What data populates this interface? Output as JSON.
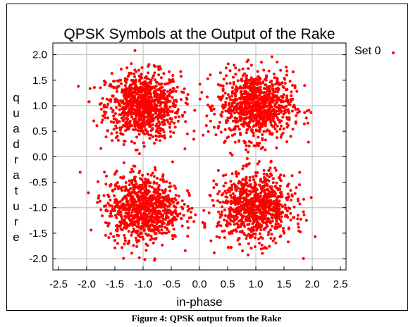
{
  "chart_data": {
    "type": "scatter",
    "title": "QPSK Symbols at the Output of the Rake",
    "xlabel": "in-phase",
    "ylabel": "quadrature",
    "xlim": [
      -2.5,
      2.5
    ],
    "ylim": [
      -2.0,
      2.0
    ],
    "x_ticks": [
      "-2.5",
      "-2.0",
      "-1.5",
      "-1.0",
      "-0.5",
      "0.0",
      "0.5",
      "1.0",
      "1.5",
      "2.0",
      "2.5"
    ],
    "y_ticks": [
      "2.0",
      "1.5",
      "1.0",
      "0.5",
      "0.0",
      "-0.5",
      "-1.0",
      "-1.5",
      "-2.0"
    ],
    "grid": true,
    "legend": "top-right",
    "series": [
      {
        "name": "Set 0",
        "color": "#ff0000",
        "cluster_centers": [
          [
            -1.0,
            1.0
          ],
          [
            1.0,
            1.0
          ],
          [
            -1.0,
            -1.0
          ],
          [
            1.0,
            -1.0
          ]
        ],
        "cluster_spread": 0.33,
        "approx_points_per_cluster": 900
      }
    ]
  },
  "caption": "Figure 4: QPSK output from the Rake"
}
